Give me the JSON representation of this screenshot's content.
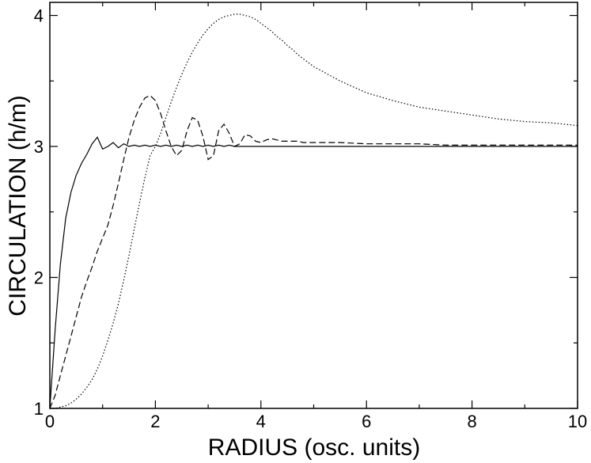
{
  "chart_data": {
    "type": "line",
    "xlabel": "RADIUS (osc. units)",
    "ylabel": "CIRCULATION (h/m)",
    "x": [
      0,
      0.1,
      0.2,
      0.3,
      0.4,
      0.5,
      0.6,
      0.7,
      0.8,
      0.9,
      1.0,
      1.1,
      1.2,
      1.3,
      1.4,
      1.5,
      1.6,
      1.7,
      1.8,
      1.9,
      2.0,
      2.1,
      2.2,
      2.3,
      2.4,
      2.5,
      2.6,
      2.7,
      2.8,
      2.9,
      3.0,
      3.1,
      3.2,
      3.3,
      3.4,
      3.5,
      3.6,
      3.7,
      3.8,
      3.9,
      4.0,
      4.1,
      4.2,
      4.3,
      4.4,
      4.5,
      4.6,
      4.7,
      4.8,
      4.9,
      5.0,
      5.5,
      6.0,
      6.5,
      7.0,
      7.5,
      8.0,
      8.5,
      9.0,
      9.5,
      10.0
    ],
    "series": [
      {
        "color": "#000000",
        "dash": "solid",
        "values": [
          1,
          1.6,
          2.1,
          2.45,
          2.65,
          2.78,
          2.87,
          2.94,
          3.02,
          3.07,
          2.98,
          3.0,
          3.03,
          2.99,
          3.02,
          3.0,
          3.01,
          3.0,
          3.01,
          3.0,
          3.01,
          3.0,
          3.01,
          3.0,
          3.01,
          3.0,
          3.01,
          3.0,
          3.01,
          3.0,
          3.01,
          3.0,
          3.01,
          3.0,
          3.01,
          3.0,
          3.0,
          3.0,
          3.0,
          3.0,
          3.0,
          3.0,
          3.0,
          3.0,
          3.0,
          3.0,
          3.0,
          3.0,
          3.0,
          3.0,
          3.0,
          3.0,
          3.0,
          3.0,
          3.0,
          3.0,
          3.0,
          3.0,
          3.0,
          3.0,
          3.0
        ]
      },
      {
        "color": "#000000",
        "dash": "dashed",
        "values": [
          1,
          1.1,
          1.25,
          1.4,
          1.55,
          1.7,
          1.85,
          1.97,
          2.08,
          2.2,
          2.3,
          2.4,
          2.55,
          2.72,
          2.9,
          3.07,
          3.2,
          3.3,
          3.37,
          3.39,
          3.35,
          3.25,
          3.12,
          3.0,
          2.93,
          2.97,
          3.12,
          3.22,
          3.2,
          3.08,
          2.9,
          2.93,
          3.12,
          3.17,
          3.1,
          3.0,
          3.02,
          3.09,
          3.08,
          3.04,
          3.03,
          3.05,
          3.06,
          3.05,
          3.04,
          3.04,
          3.04,
          3.04,
          3.03,
          3.03,
          3.03,
          3.03,
          3.02,
          3.02,
          3.02,
          3.01,
          3.01,
          3.01,
          3.01,
          3.01,
          3.01
        ]
      },
      {
        "color": "#000000",
        "dash": "dotted",
        "values": [
          1,
          1.0,
          1.01,
          1.02,
          1.04,
          1.07,
          1.11,
          1.16,
          1.22,
          1.3,
          1.4,
          1.52,
          1.65,
          1.8,
          1.98,
          2.17,
          2.37,
          2.57,
          2.76,
          2.93,
          3.0,
          3.1,
          3.22,
          3.34,
          3.45,
          3.55,
          3.64,
          3.72,
          3.79,
          3.85,
          3.9,
          3.94,
          3.97,
          3.99,
          4.0,
          4.01,
          4.01,
          4.0,
          3.99,
          3.97,
          3.94,
          3.91,
          3.88,
          3.84,
          3.81,
          3.77,
          3.74,
          3.7,
          3.67,
          3.64,
          3.61,
          3.5,
          3.41,
          3.35,
          3.3,
          3.27,
          3.24,
          3.21,
          3.19,
          3.18,
          3.16
        ]
      }
    ],
    "xlim": [
      0,
      10
    ],
    "ylim": [
      1,
      4.1
    ],
    "xticks": [
      0,
      2,
      4,
      6,
      8,
      10
    ],
    "yticks": [
      1,
      2,
      3,
      4
    ],
    "xminorticks": [
      1,
      3,
      5,
      7,
      9
    ],
    "yminorticks": [
      1.5,
      2.5,
      3.5
    ]
  }
}
